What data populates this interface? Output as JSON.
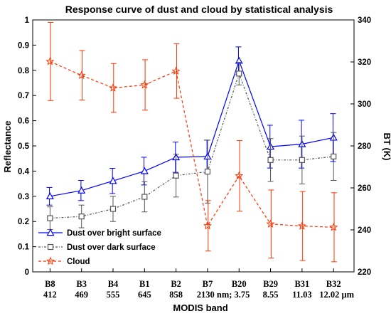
{
  "chart_data": {
    "type": "line",
    "title": "Response curve of dust and cloud by statistical analysis",
    "xlabel": "MODIS band",
    "ylabel_left": "Reflectance",
    "ylabel_right": "BT (K)",
    "y_left_lim": [
      0,
      1
    ],
    "y_left_ticks": [
      "0",
      "0.1",
      "0.2",
      "0.3",
      "0.4",
      "0.5",
      "0.6",
      "0.7",
      "0.8",
      "0.9",
      "1"
    ],
    "y_right_lim": [
      220,
      340
    ],
    "y_right_ticks": [
      "220",
      "240",
      "260",
      "280",
      "300",
      "320",
      "340"
    ],
    "categories": [
      "B8",
      "B3",
      "B4",
      "B1",
      "B2",
      "B7",
      "B20",
      "B29",
      "B31",
      "B32"
    ],
    "wavelength_labels": [
      "412",
      "469",
      "555",
      "645",
      "858",
      "2130 nm; 3.75",
      "8.55",
      "11.03",
      "12.02 µm"
    ],
    "legend_placement": "bottom-left",
    "series": [
      {
        "name": "Dust over bright surface",
        "color": "#0000ff",
        "marker": "triangle",
        "values": [
          0.3,
          0.323,
          0.361,
          0.4,
          0.455,
          0.458,
          0.838,
          0.497,
          0.507,
          0.533
        ],
        "errors": [
          0.035,
          0.04,
          0.05,
          0.055,
          0.06,
          0.065,
          0.055,
          0.085,
          0.095,
          0.095
        ]
      },
      {
        "name": "Dust over dark surface",
        "color": "#555555",
        "marker": "square",
        "values": [
          0.213,
          0.22,
          0.25,
          0.298,
          0.382,
          0.398,
          0.787,
          0.444,
          0.444,
          0.458
        ],
        "errors": [
          0.045,
          0.045,
          0.05,
          0.06,
          0.085,
          0.125,
          0.045,
          0.085,
          0.095,
          0.095
        ]
      },
      {
        "name": "Cloud",
        "color": "#ff3300",
        "marker": "star",
        "values": [
          0.835,
          0.78,
          0.73,
          0.742,
          0.797,
          0.183,
          0.381,
          0.19,
          0.182,
          0.177
        ],
        "errors": [
          0.155,
          0.098,
          0.097,
          0.1,
          0.108,
          0.1,
          0.14,
          0.135,
          0.137,
          0.137
        ]
      }
    ]
  }
}
